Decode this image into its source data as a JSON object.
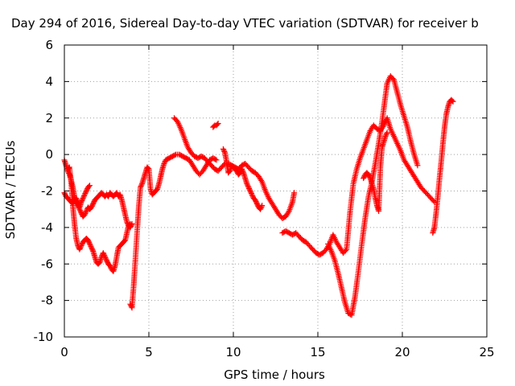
{
  "chart_data": {
    "type": "scatter",
    "title": "Day 294 of 2016, Sidereal Day-to-day VTEC variation (SDTVAR) for receiver b",
    "xlabel": "GPS time / hours",
    "ylabel": "SDTVAR / TECUs",
    "xlim": [
      0,
      25
    ],
    "ylim": [
      -10,
      6
    ],
    "xticks": [
      "0",
      "5",
      "10",
      "15",
      "20",
      "25"
    ],
    "yticks": [
      "-10",
      "-8",
      "-6",
      "-4",
      "-2",
      "0",
      "2",
      "4",
      "6"
    ],
    "grid": true,
    "marker": "+",
    "series_color": "#ff0000",
    "series": [
      {
        "x": [
          0.0,
          0.1,
          0.2,
          0.3,
          0.4,
          0.5,
          0.6,
          0.7,
          0.8,
          0.9,
          1.0,
          1.1,
          1.2,
          1.3,
          1.4,
          1.5,
          1.6,
          1.7,
          1.8,
          1.9,
          2.0,
          2.1,
          2.2,
          2.3,
          2.4,
          2.5,
          2.6,
          2.7,
          2.8,
          2.9,
          3.0,
          3.1,
          3.2,
          3.3,
          3.4,
          3.5,
          3.6,
          3.7,
          3.8,
          3.9,
          4.0
        ],
        "y": [
          -0.3,
          -0.6,
          -0.9,
          -1.1,
          -1.4,
          -1.8,
          -2.3,
          -2.6,
          -2.8,
          -3.0,
          -3.2,
          -3.4,
          -3.3,
          -3.1,
          -2.9,
          -3.0,
          -2.9,
          -2.7,
          -2.5,
          -2.4,
          -2.3,
          -2.2,
          -2.1,
          -2.2,
          -2.3,
          -2.2,
          -2.3,
          -2.1,
          -2.2,
          -2.3,
          -2.2,
          -2.1,
          -2.3,
          -2.2,
          -2.5,
          -2.9,
          -3.3,
          -3.7,
          -3.9,
          -4.0,
          -3.8
        ]
      },
      {
        "x": [
          0.0,
          0.1,
          0.2,
          0.3,
          0.4,
          0.5,
          0.6,
          0.7,
          0.8,
          0.9,
          1.0,
          1.1,
          1.2,
          1.3,
          1.4,
          1.5
        ],
        "y": [
          -2.1,
          -2.3,
          -2.4,
          -2.5,
          -2.6,
          -2.7,
          -2.5,
          -2.4,
          -2.7,
          -2.9,
          -2.6,
          -2.4,
          -2.2,
          -2.0,
          -1.8,
          -1.7
        ]
      },
      {
        "x": [
          0.2,
          0.3,
          0.4,
          0.5,
          0.6,
          0.7,
          0.8,
          0.9,
          1.0,
          1.1,
          1.2,
          1.3,
          1.4,
          1.5,
          1.6,
          1.7,
          1.8,
          1.9,
          2.0,
          2.1,
          2.2,
          2.3,
          2.4,
          2.5,
          2.6,
          2.7,
          2.8,
          2.9,
          3.0,
          3.1,
          3.2,
          3.3,
          3.4,
          3.5,
          3.6,
          3.7,
          3.8,
          3.9
        ],
        "y": [
          -0.8,
          -0.7,
          -1.5,
          -2.8,
          -3.8,
          -4.6,
          -5.0,
          -5.2,
          -5.0,
          -4.8,
          -4.7,
          -4.6,
          -4.7,
          -4.9,
          -5.1,
          -5.3,
          -5.6,
          -5.9,
          -6.0,
          -5.9,
          -5.6,
          -5.4,
          -5.6,
          -5.8,
          -6.0,
          -6.1,
          -6.3,
          -6.4,
          -6.1,
          -5.6,
          -5.1,
          -5.0,
          -4.9,
          -4.8,
          -4.7,
          -4.3,
          -3.9,
          -3.8
        ]
      },
      {
        "x": [
          3.9,
          4.0,
          4.1,
          4.2,
          4.3,
          4.4,
          4.5,
          4.6,
          4.7,
          4.8,
          4.9,
          5.0,
          5.1,
          5.2,
          5.3,
          5.4,
          5.5,
          5.6,
          5.7,
          5.8,
          5.9,
          6.0,
          6.2,
          6.4,
          6.6,
          6.8,
          7.0,
          7.2,
          7.4,
          7.6,
          7.8,
          8.0,
          8.2,
          8.4,
          8.6,
          8.8,
          9.0
        ],
        "y": [
          -8.2,
          -8.4,
          -7.2,
          -5.8,
          -4.3,
          -2.9,
          -1.8,
          -1.6,
          -1.3,
          -1.0,
          -0.7,
          -0.8,
          -1.9,
          -2.2,
          -2.1,
          -2.0,
          -1.9,
          -1.6,
          -1.2,
          -0.8,
          -0.5,
          -0.3,
          -0.2,
          -0.1,
          0.0,
          0.0,
          -0.1,
          -0.2,
          -0.3,
          -0.6,
          -0.9,
          -1.1,
          -0.9,
          -0.6,
          -0.3,
          -0.2,
          -0.3
        ]
      },
      {
        "x": [
          6.5,
          6.7,
          6.9,
          7.1,
          7.3,
          7.5,
          7.7,
          7.9,
          8.1,
          8.3,
          8.5,
          8.7,
          8.9,
          9.1,
          9.3,
          9.5,
          9.7,
          9.9,
          10.1,
          10.3,
          10.5,
          10.7,
          10.9,
          11.1,
          11.3,
          11.5,
          11.7,
          11.9,
          12.1,
          12.3,
          12.5,
          12.7,
          12.9,
          13.1,
          13.3,
          13.5,
          13.6
        ],
        "y": [
          2.0,
          1.8,
          1.4,
          0.9,
          0.4,
          0.1,
          -0.1,
          -0.2,
          -0.1,
          -0.2,
          -0.4,
          -0.6,
          -0.8,
          -0.9,
          -0.7,
          -0.5,
          -0.5,
          -0.6,
          -0.7,
          -0.8,
          -0.6,
          -0.5,
          -0.7,
          -0.9,
          -1.0,
          -1.2,
          -1.5,
          -2.0,
          -2.4,
          -2.7,
          -3.0,
          -3.3,
          -3.5,
          -3.4,
          -3.1,
          -2.6,
          -2.1
        ]
      },
      {
        "x": [
          8.8,
          8.9,
          9.0,
          9.1
        ],
        "y": [
          1.5,
          1.6,
          1.6,
          1.7
        ]
      },
      {
        "x": [
          9.4,
          9.5,
          9.6,
          9.7,
          9.8,
          9.9,
          10.0,
          10.1,
          10.2,
          10.3,
          10.4,
          10.5,
          10.6,
          10.7,
          10.8,
          10.9,
          11.0,
          11.1,
          11.2,
          11.3,
          11.4,
          11.5,
          11.6,
          11.7
        ],
        "y": [
          0.3,
          0.1,
          -0.4,
          -1.0,
          -0.9,
          -0.6,
          -0.7,
          -0.8,
          -0.9,
          -1.1,
          -1.0,
          -0.8,
          -1.0,
          -1.3,
          -1.6,
          -1.8,
          -2.0,
          -2.2,
          -2.4,
          -2.5,
          -2.7,
          -2.9,
          -3.0,
          -2.8
        ]
      },
      {
        "x": [
          12.9,
          13.1,
          13.3,
          13.5,
          13.7,
          13.9,
          14.1,
          14.3,
          14.5,
          14.7,
          14.9,
          15.1,
          15.3,
          15.5,
          15.7,
          15.9,
          16.1,
          16.3,
          16.5,
          16.7,
          16.9,
          17.1,
          17.3,
          17.5,
          17.7,
          17.9,
          18.1,
          18.3,
          18.5,
          18.7,
          18.9,
          19.1,
          19.3,
          19.5,
          19.7,
          19.9,
          20.1,
          20.3,
          20.5,
          20.7,
          20.9,
          21.1,
          21.3,
          21.5,
          21.7,
          21.9
        ],
        "y": [
          -4.3,
          -4.2,
          -4.3,
          -4.4,
          -4.3,
          -4.5,
          -4.7,
          -4.8,
          -5.0,
          -5.2,
          -5.4,
          -5.5,
          -5.4,
          -5.2,
          -4.9,
          -4.4,
          -4.8,
          -5.1,
          -5.4,
          -5.2,
          -3.2,
          -1.6,
          -0.8,
          -0.2,
          0.3,
          0.8,
          1.3,
          1.6,
          1.4,
          1.3,
          1.6,
          2.0,
          1.4,
          1.0,
          0.6,
          0.2,
          -0.3,
          -0.6,
          -0.9,
          -1.2,
          -1.5,
          -1.8,
          -2.0,
          -2.2,
          -2.4,
          -2.6
        ]
      },
      {
        "x": [
          15.6,
          15.8,
          16.0,
          16.2,
          16.4,
          16.6,
          16.8,
          17.0,
          17.2,
          17.4,
          17.6,
          17.8,
          18.0,
          18.2,
          18.4,
          18.6,
          18.8,
          19.0,
          19.1,
          19.3,
          19.5,
          19.7,
          19.9,
          20.1,
          20.3,
          20.5,
          20.7,
          20.9
        ],
        "y": [
          -4.9,
          -5.3,
          -5.8,
          -6.5,
          -7.3,
          -8.1,
          -8.7,
          -8.8,
          -7.8,
          -6.4,
          -4.9,
          -3.5,
          -2.3,
          -1.5,
          -0.5,
          0.6,
          1.8,
          3.2,
          3.9,
          4.3,
          4.1,
          3.4,
          2.7,
          2.1,
          1.5,
          0.7,
          0.0,
          -0.6
        ]
      },
      {
        "x": [
          17.7,
          17.8,
          17.9,
          18.0,
          18.1,
          18.2,
          18.3,
          18.4,
          18.5,
          18.6,
          18.7,
          18.8,
          18.9,
          19.0,
          19.1
        ],
        "y": [
          -1.3,
          -1.1,
          -1.0,
          -1.1,
          -1.3,
          -1.6,
          -1.9,
          -2.4,
          -2.8,
          -3.1,
          -0.7,
          0.4,
          0.7,
          1.0,
          1.2
        ]
      },
      {
        "x": [
          21.8,
          21.9,
          22.0,
          22.1,
          22.2,
          22.3,
          22.4,
          22.5,
          22.6,
          22.7,
          22.8,
          22.9,
          23.0
        ],
        "y": [
          -4.3,
          -4.0,
          -3.2,
          -2.3,
          -1.3,
          -0.4,
          0.6,
          1.5,
          2.2,
          2.6,
          2.9,
          3.0,
          2.9
        ]
      }
    ]
  }
}
